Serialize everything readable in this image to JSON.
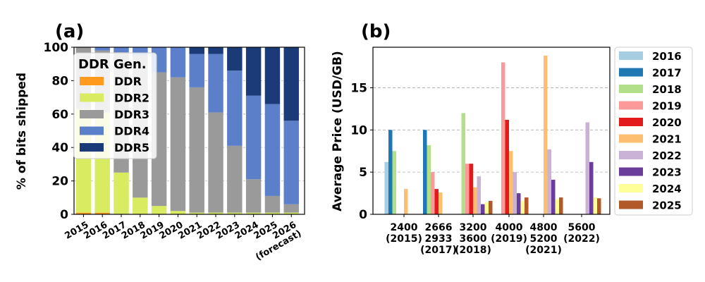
{
  "panel_a": {
    "label": "(a)",
    "ylabel": "% of bits shipped",
    "legend_title": "DDR Gen.",
    "y_ticks": [
      "0",
      "20",
      "40",
      "60",
      "80",
      "100"
    ],
    "x_labels": [
      [
        "2015"
      ],
      [
        "2016"
      ],
      [
        "2017"
      ],
      [
        "2018"
      ],
      [
        "2019"
      ],
      [
        "2020"
      ],
      [
        "2021"
      ],
      [
        "2022"
      ],
      [
        "2023"
      ],
      [
        "2024"
      ],
      [
        "2025"
      ],
      [
        "2026",
        "(forecast)"
      ]
    ]
  },
  "panel_b": {
    "label": "(b)",
    "ylabel": "Average Price (USD/GB)",
    "y_ticks": [
      "0",
      "5",
      "10",
      "15"
    ],
    "x_labels": [
      [
        "2400",
        "(2015)"
      ],
      [
        "2666",
        "2933",
        "(2017)"
      ],
      [
        "3200",
        "3600",
        "(2018)"
      ],
      [
        "4000",
        "(2019)"
      ],
      [
        "4800",
        "5200",
        "(2021)"
      ],
      [
        "5600",
        "(2022)"
      ]
    ]
  },
  "colors": {
    "DDR": "#ff9a1f",
    "DDR2": "#d9eb60",
    "DDR3": "#9a9a9a",
    "DDR4": "#5b7fc8",
    "DDR5": "#1b3a78",
    "2016": "#a6cee3",
    "2017": "#1f78b4",
    "2018": "#b2df8a",
    "2019": "#fb9a99",
    "2020": "#e31a1c",
    "2021": "#fdbf6f",
    "2022": "#cab2d6",
    "2023": "#6a3d9a",
    "2024": "#ffff99",
    "2025": "#b15928"
  },
  "chart_data": [
    {
      "type": "bar",
      "stacked": true,
      "ylabel": "% of bits shipped",
      "ylim": [
        0,
        100
      ],
      "legend_title": "DDR Gen.",
      "legend": "top-left",
      "categories": [
        "2015",
        "2016",
        "2017",
        "2018",
        "2019",
        "2020",
        "2021",
        "2022",
        "2023",
        "2024",
        "2025",
        "2026 (forecast)"
      ],
      "series": [
        {
          "name": "DDR",
          "values": [
            1,
            1,
            0,
            0,
            0,
            0,
            0,
            0,
            0,
            0,
            0,
            0
          ]
        },
        {
          "name": "DDR2",
          "values": [
            62,
            60,
            25,
            10,
            5,
            2,
            1,
            1,
            1,
            1,
            1,
            1
          ]
        },
        {
          "name": "DDR3",
          "values": [
            37,
            37,
            72,
            85,
            80,
            80,
            75,
            60,
            40,
            20,
            10,
            5
          ]
        },
        {
          "name": "DDR4",
          "values": [
            0,
            2,
            3,
            5,
            15,
            18,
            20,
            35,
            45,
            50,
            55,
            50
          ]
        },
        {
          "name": "DDR5",
          "values": [
            0,
            0,
            0,
            0,
            0,
            0,
            4,
            4,
            14,
            29,
            34,
            44
          ]
        }
      ]
    },
    {
      "type": "bar",
      "ylabel": "Average Price (USD/GB)",
      "ylim": [
        0,
        19.8
      ],
      "grid": true,
      "legend": "right",
      "categories": [
        "2400 (2015)",
        "2666 2933 (2017)",
        "3200 3600 (2018)",
        "4000 (2019)",
        "4800 5200 (2021)",
        "5600 (2022)"
      ],
      "series": [
        {
          "name": "2016",
          "values": [
            6.2,
            null,
            null,
            null,
            null,
            null
          ]
        },
        {
          "name": "2017",
          "values": [
            10.0,
            10.0,
            null,
            null,
            null,
            null
          ]
        },
        {
          "name": "2018",
          "values": [
            7.5,
            8.2,
            12.0,
            null,
            null,
            null
          ]
        },
        {
          "name": "2019",
          "values": [
            null,
            5.0,
            6.0,
            18.0,
            null,
            null
          ]
        },
        {
          "name": "2020",
          "values": [
            null,
            3.0,
            6.0,
            11.2,
            null,
            null
          ]
        },
        {
          "name": "2021",
          "values": [
            3.0,
            2.6,
            3.2,
            7.5,
            18.8,
            null
          ]
        },
        {
          "name": "2022",
          "values": [
            null,
            null,
            4.5,
            5.0,
            7.7,
            10.9
          ]
        },
        {
          "name": "2023",
          "values": [
            null,
            null,
            1.2,
            2.5,
            4.1,
            6.2
          ]
        },
        {
          "name": "2024",
          "values": [
            null,
            null,
            1.4,
            1.6,
            1.8,
            2.0
          ]
        },
        {
          "name": "2025",
          "values": [
            null,
            null,
            1.6,
            2.0,
            2.0,
            1.9
          ]
        }
      ]
    }
  ]
}
